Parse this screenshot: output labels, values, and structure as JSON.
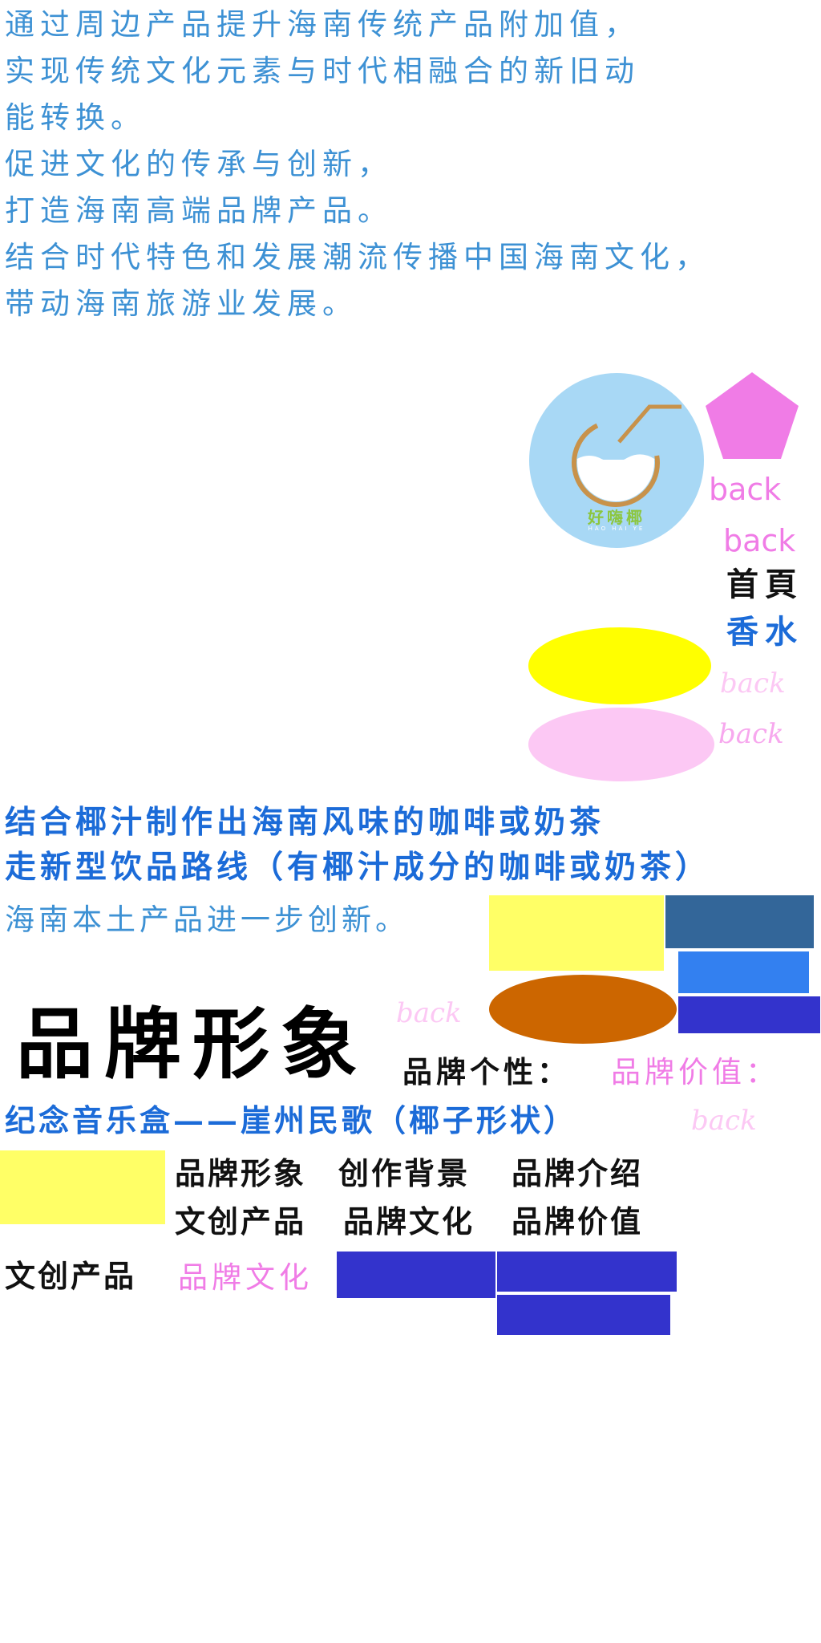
{
  "intro": {
    "lines": [
      "通过周边产品提升海南传统产品附加值，",
      "实现传统文化元素与时代相融合的新旧动",
      "能转换。",
      "促进文化的传承与创新，",
      "打造海南高端品牌产品。",
      "结合时代特色和发展潮流传播中国海南文化，",
      "带动海南旅游业发展。"
    ]
  },
  "logo": {
    "name_cn": "好嗨椰",
    "name_pinyin": "HAO HAI YE"
  },
  "nav": {
    "back_pink_1": "back",
    "back_pink_2": "back",
    "home": "首頁",
    "perfume": "香水",
    "back_light_1": "back",
    "back_light_2": "back",
    "back_light_3": "back",
    "back_light_4": "back"
  },
  "drink": {
    "line1": "结合椰汁制作出海南风味的咖啡或奶茶",
    "line2": "走新型饮品路线（有椰汁成分的咖啡或奶茶）",
    "line3": "海南本土产品进一步创新。"
  },
  "brand": {
    "title": "品牌形象",
    "personality": "品牌个性：",
    "value": "品牌价值：",
    "music_box": "纪念音乐盒——崖州民歌（椰子形状）"
  },
  "menu": {
    "row1": [
      "品牌形象",
      "创作背景",
      "品牌介绍"
    ],
    "row2": [
      "文创产品",
      "品牌文化",
      "品牌价值"
    ],
    "bottom_product": "文创产品",
    "bottom_culture": "品牌文化"
  },
  "colors": {
    "intro_blue": "#3d91d4",
    "pink": "#f07ce6",
    "light_pink": "#fcc8f4",
    "yellow": "#ffff00",
    "soft_yellow": "#ffff66",
    "steel_blue": "#336699",
    "bright_blue": "#3380f0",
    "indigo": "#3333cc",
    "orange_brown": "#cc6600",
    "logo_bg": "#a8d8f5"
  }
}
